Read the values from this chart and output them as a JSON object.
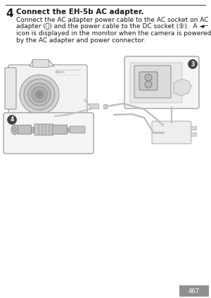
{
  "step_number": "4",
  "title": "Connect the EH-5b AC adapter.",
  "body_lines": [
    "Connect the AC adapter power cable to the AC socket on AC",
    "adapter (ⓢ) and the power cable to the DC socket (⑤).  A ◄─",
    "icon is displayed in the monitor when the camera is powered",
    "by the AC adapter and power connector."
  ],
  "page_bg": "#ffffff",
  "text_color": "#1a1a1a",
  "line_color": "#bbbbbb",
  "cam_edge": "#888888",
  "cam_fill": "#f2f2f2",
  "callout_edge": "#999999",
  "callout_fill": "#f5f5f5",
  "cable_color": "#c0c0c0",
  "page_num_bg": "#909090",
  "page_num_text": "467",
  "top_rule_color": "#555555"
}
